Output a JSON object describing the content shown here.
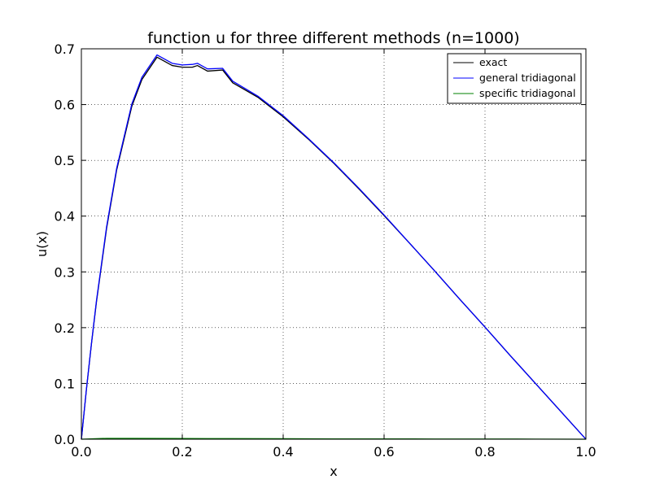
{
  "chart_data": {
    "type": "line",
    "title": "function u for three different methods (n=1000)",
    "xlabel": "x",
    "ylabel": "u(x)",
    "xlim": [
      0.0,
      1.0
    ],
    "ylim": [
      0.0,
      0.7
    ],
    "xticks": [
      "0.0",
      "0.2",
      "0.4",
      "0.6",
      "0.8",
      "1.0"
    ],
    "yticks": [
      "0.0",
      "0.1",
      "0.2",
      "0.3",
      "0.4",
      "0.5",
      "0.6",
      "0.7"
    ],
    "grid": true,
    "legend_position": "top-right",
    "series": [
      {
        "name": "exact",
        "color": "#000000",
        "x": [
          0.0,
          0.01,
          0.02,
          0.03,
          0.05,
          0.07,
          0.1,
          0.12,
          0.15,
          0.18,
          0.2,
          0.22,
          0.23,
          0.25,
          0.28,
          0.3,
          0.35,
          0.4,
          0.45,
          0.5,
          0.55,
          0.6,
          0.65,
          0.7,
          0.75,
          0.8,
          0.85,
          0.9,
          0.95,
          1.0
        ],
        "values": [
          0.0,
          0.089,
          0.171,
          0.247,
          0.378,
          0.483,
          0.597,
          0.645,
          0.685,
          0.67,
          0.667,
          0.667,
          0.67,
          0.66,
          0.662,
          0.639,
          0.613,
          0.578,
          0.538,
          0.495,
          0.449,
          0.401,
          0.352,
          0.302,
          0.251,
          0.201,
          0.15,
          0.1,
          0.05,
          0.0
        ]
      },
      {
        "name": "general tridiagonal",
        "color": "#0000ff",
        "x": [
          0.0,
          0.01,
          0.02,
          0.03,
          0.05,
          0.07,
          0.1,
          0.12,
          0.15,
          0.18,
          0.2,
          0.22,
          0.23,
          0.25,
          0.28,
          0.3,
          0.35,
          0.4,
          0.45,
          0.5,
          0.55,
          0.6,
          0.65,
          0.7,
          0.75,
          0.8,
          0.85,
          0.9,
          0.95,
          1.0
        ],
        "values": [
          0.0,
          0.09,
          0.172,
          0.249,
          0.381,
          0.486,
          0.601,
          0.649,
          0.689,
          0.674,
          0.671,
          0.672,
          0.674,
          0.664,
          0.665,
          0.642,
          0.615,
          0.58,
          0.539,
          0.496,
          0.45,
          0.402,
          0.352,
          0.302,
          0.251,
          0.201,
          0.15,
          0.1,
          0.05,
          0.0
        ]
      },
      {
        "name": "specific tridiagonal",
        "color": "#008000",
        "x": [
          0.0,
          0.05,
          0.1,
          0.2,
          0.3,
          0.4,
          0.5,
          0.6,
          0.7,
          0.8,
          0.9,
          1.0
        ],
        "values": [
          0.0,
          0.0015,
          0.0015,
          0.0012,
          0.001,
          0.0008,
          0.0006,
          0.0005,
          0.0004,
          0.0003,
          0.0002,
          0.0
        ]
      }
    ]
  }
}
